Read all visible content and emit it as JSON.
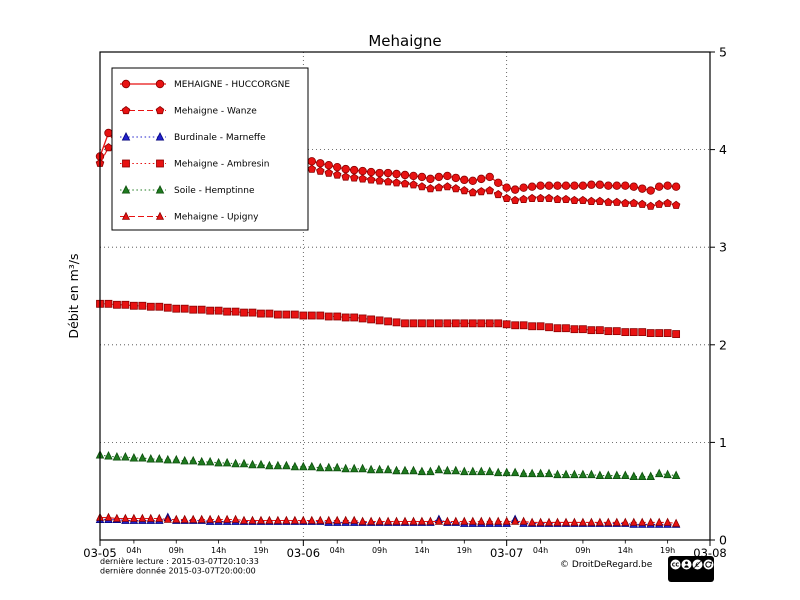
{
  "footer": {
    "last_read": "dernière lecture : 2015-03-07T20:10:33",
    "last_data": "dernière donnée  2015-03-07T20:00:00",
    "copyright": "© DroitDeRegard.be",
    "cc_label": "CC",
    "license": "BY NC SA"
  },
  "chart_data": {
    "type": "line",
    "title": "Mehaigne",
    "ylabel": "Débit en m³/s",
    "ylim": [
      0,
      5
    ],
    "xlim_hours": [
      0,
      72
    ],
    "grid": "dotted",
    "legend_position": "upper left",
    "y_ticks": [
      0,
      1,
      2,
      3,
      4,
      5
    ],
    "x_ticks_major": [
      {
        "pos": 0,
        "label": "03-05"
      },
      {
        "pos": 24,
        "label": "03-06"
      },
      {
        "pos": 48,
        "label": "03-07"
      },
      {
        "pos": 72,
        "label": "03-08"
      }
    ],
    "x_ticks_minor": [
      {
        "pos": 4,
        "label": "04h"
      },
      {
        "pos": 9,
        "label": "09h"
      },
      {
        "pos": 14,
        "label": "14h"
      },
      {
        "pos": 19,
        "label": "19h"
      },
      {
        "pos": 28,
        "label": "04h"
      },
      {
        "pos": 33,
        "label": "09h"
      },
      {
        "pos": 38,
        "label": "14h"
      },
      {
        "pos": 43,
        "label": "19h"
      },
      {
        "pos": 52,
        "label": "04h"
      },
      {
        "pos": 57,
        "label": "09h"
      },
      {
        "pos": 62,
        "label": "14h"
      },
      {
        "pos": 67,
        "label": "19h"
      }
    ],
    "series": [
      {
        "name": "MEHAIGNE - HUCCORGNE",
        "color": "#e81212",
        "edge": "#8a0000",
        "line": "solid",
        "marker": "circle",
        "marker_size": 3.8,
        "start_hour": 0,
        "step_hours": 1,
        "values": [
          3.93,
          4.17,
          4.05,
          3.97,
          3.93,
          3.9,
          3.88,
          3.86,
          3.85,
          3.84,
          3.83,
          3.82,
          3.81,
          3.8,
          3.79,
          3.78,
          3.77,
          3.76,
          3.75,
          3.74,
          3.73,
          3.72,
          3.73,
          3.76,
          3.9,
          3.88,
          3.86,
          3.84,
          3.82,
          3.8,
          3.79,
          3.78,
          3.77,
          3.76,
          3.76,
          3.75,
          3.74,
          3.73,
          3.72,
          3.7,
          3.72,
          3.73,
          3.71,
          3.69,
          3.68,
          3.7,
          3.72,
          3.66,
          3.61,
          3.59,
          3.61,
          3.62,
          3.63,
          3.63,
          3.63,
          3.63,
          3.63,
          3.63,
          3.64,
          3.64,
          3.63,
          3.63,
          3.63,
          3.62,
          3.6,
          3.58,
          3.62,
          3.63,
          3.62
        ]
      },
      {
        "name": "Mehaigne - Wanze",
        "color": "#e81212",
        "edge": "#8a0000",
        "line": "dashed",
        "marker": "pentagon",
        "marker_size": 4.0,
        "start_hour": 0,
        "step_hours": 1,
        "values": [
          3.86,
          4.02,
          3.95,
          3.88,
          3.84,
          3.82,
          3.8,
          3.78,
          3.77,
          3.76,
          3.75,
          3.74,
          3.73,
          3.72,
          3.71,
          3.7,
          3.69,
          3.68,
          3.67,
          3.66,
          3.65,
          3.64,
          3.65,
          3.68,
          3.83,
          3.8,
          3.78,
          3.76,
          3.74,
          3.72,
          3.71,
          3.7,
          3.69,
          3.68,
          3.67,
          3.66,
          3.65,
          3.64,
          3.62,
          3.6,
          3.61,
          3.62,
          3.6,
          3.58,
          3.56,
          3.57,
          3.58,
          3.54,
          3.5,
          3.48,
          3.49,
          3.5,
          3.5,
          3.5,
          3.49,
          3.49,
          3.48,
          3.48,
          3.47,
          3.47,
          3.46,
          3.46,
          3.45,
          3.45,
          3.44,
          3.42,
          3.44,
          3.45,
          3.43
        ]
      },
      {
        "name": "Burdinale - Marneffe",
        "color": "#2222cc",
        "edge": "#00007a",
        "line": "dotted",
        "marker": "triangle",
        "marker_size": 3.6,
        "start_hour": 0,
        "step_hours": 1,
        "values": [
          0.21,
          0.21,
          0.21,
          0.2,
          0.2,
          0.2,
          0.2,
          0.2,
          0.23,
          0.2,
          0.2,
          0.2,
          0.2,
          0.19,
          0.19,
          0.19,
          0.19,
          0.19,
          0.19,
          0.19,
          0.19,
          0.19,
          0.19,
          0.19,
          0.19,
          0.19,
          0.19,
          0.18,
          0.18,
          0.18,
          0.18,
          0.18,
          0.18,
          0.18,
          0.18,
          0.18,
          0.18,
          0.18,
          0.18,
          0.18,
          0.21,
          0.18,
          0.18,
          0.17,
          0.17,
          0.17,
          0.17,
          0.17,
          0.17,
          0.21,
          0.17,
          0.17,
          0.17,
          0.17,
          0.17,
          0.17,
          0.17,
          0.17,
          0.17,
          0.17,
          0.17,
          0.17,
          0.17,
          0.16,
          0.16,
          0.16,
          0.16,
          0.16,
          0.16
        ]
      },
      {
        "name": "Mehaigne - Ambresin",
        "color": "#e81212",
        "edge": "#8a0000",
        "line": "dotted",
        "marker": "square",
        "marker_size": 3.5,
        "start_hour": 0,
        "step_hours": 1,
        "values": [
          2.42,
          2.42,
          2.41,
          2.41,
          2.4,
          2.4,
          2.39,
          2.39,
          2.38,
          2.37,
          2.37,
          2.36,
          2.36,
          2.35,
          2.35,
          2.34,
          2.34,
          2.33,
          2.33,
          2.32,
          2.32,
          2.31,
          2.31,
          2.31,
          2.3,
          2.3,
          2.3,
          2.29,
          2.29,
          2.28,
          2.28,
          2.27,
          2.26,
          2.25,
          2.24,
          2.23,
          2.22,
          2.22,
          2.22,
          2.22,
          2.22,
          2.22,
          2.22,
          2.22,
          2.22,
          2.22,
          2.22,
          2.22,
          2.21,
          2.2,
          2.2,
          2.19,
          2.19,
          2.18,
          2.17,
          2.17,
          2.16,
          2.16,
          2.15,
          2.15,
          2.14,
          2.14,
          2.13,
          2.13,
          2.13,
          2.12,
          2.12,
          2.12,
          2.11
        ]
      },
      {
        "name": "Soile - Hemptinne",
        "color": "#1f7a1f",
        "edge": "#0b4d0b",
        "line": "dotted",
        "marker": "triangle",
        "marker_size": 3.6,
        "start_hour": 0,
        "step_hours": 1,
        "values": [
          0.87,
          0.86,
          0.85,
          0.85,
          0.84,
          0.84,
          0.83,
          0.83,
          0.82,
          0.82,
          0.81,
          0.81,
          0.8,
          0.8,
          0.79,
          0.79,
          0.78,
          0.78,
          0.77,
          0.77,
          0.76,
          0.76,
          0.76,
          0.75,
          0.75,
          0.75,
          0.74,
          0.74,
          0.74,
          0.73,
          0.73,
          0.73,
          0.72,
          0.72,
          0.72,
          0.71,
          0.71,
          0.71,
          0.7,
          0.7,
          0.72,
          0.71,
          0.71,
          0.7,
          0.7,
          0.7,
          0.7,
          0.69,
          0.69,
          0.69,
          0.68,
          0.68,
          0.68,
          0.68,
          0.67,
          0.67,
          0.67,
          0.67,
          0.67,
          0.66,
          0.66,
          0.66,
          0.66,
          0.65,
          0.65,
          0.65,
          0.68,
          0.67,
          0.66
        ]
      },
      {
        "name": "Mehaigne - Upigny",
        "color": "#e81212",
        "edge": "#8a0000",
        "line": "dashed",
        "marker": "triangle",
        "marker_size": 3.4,
        "start_hour": 0,
        "step_hours": 1,
        "values": [
          0.23,
          0.23,
          0.22,
          0.22,
          0.22,
          0.22,
          0.22,
          0.22,
          0.21,
          0.21,
          0.21,
          0.21,
          0.21,
          0.21,
          0.21,
          0.21,
          0.21,
          0.2,
          0.2,
          0.2,
          0.2,
          0.2,
          0.2,
          0.2,
          0.2,
          0.2,
          0.2,
          0.2,
          0.2,
          0.2,
          0.2,
          0.19,
          0.19,
          0.19,
          0.19,
          0.19,
          0.19,
          0.19,
          0.19,
          0.19,
          0.19,
          0.19,
          0.19,
          0.19,
          0.19,
          0.19,
          0.19,
          0.19,
          0.19,
          0.19,
          0.19,
          0.18,
          0.18,
          0.18,
          0.18,
          0.18,
          0.18,
          0.18,
          0.18,
          0.18,
          0.18,
          0.18,
          0.18,
          0.18,
          0.18,
          0.18,
          0.18,
          0.18,
          0.17
        ]
      }
    ]
  }
}
